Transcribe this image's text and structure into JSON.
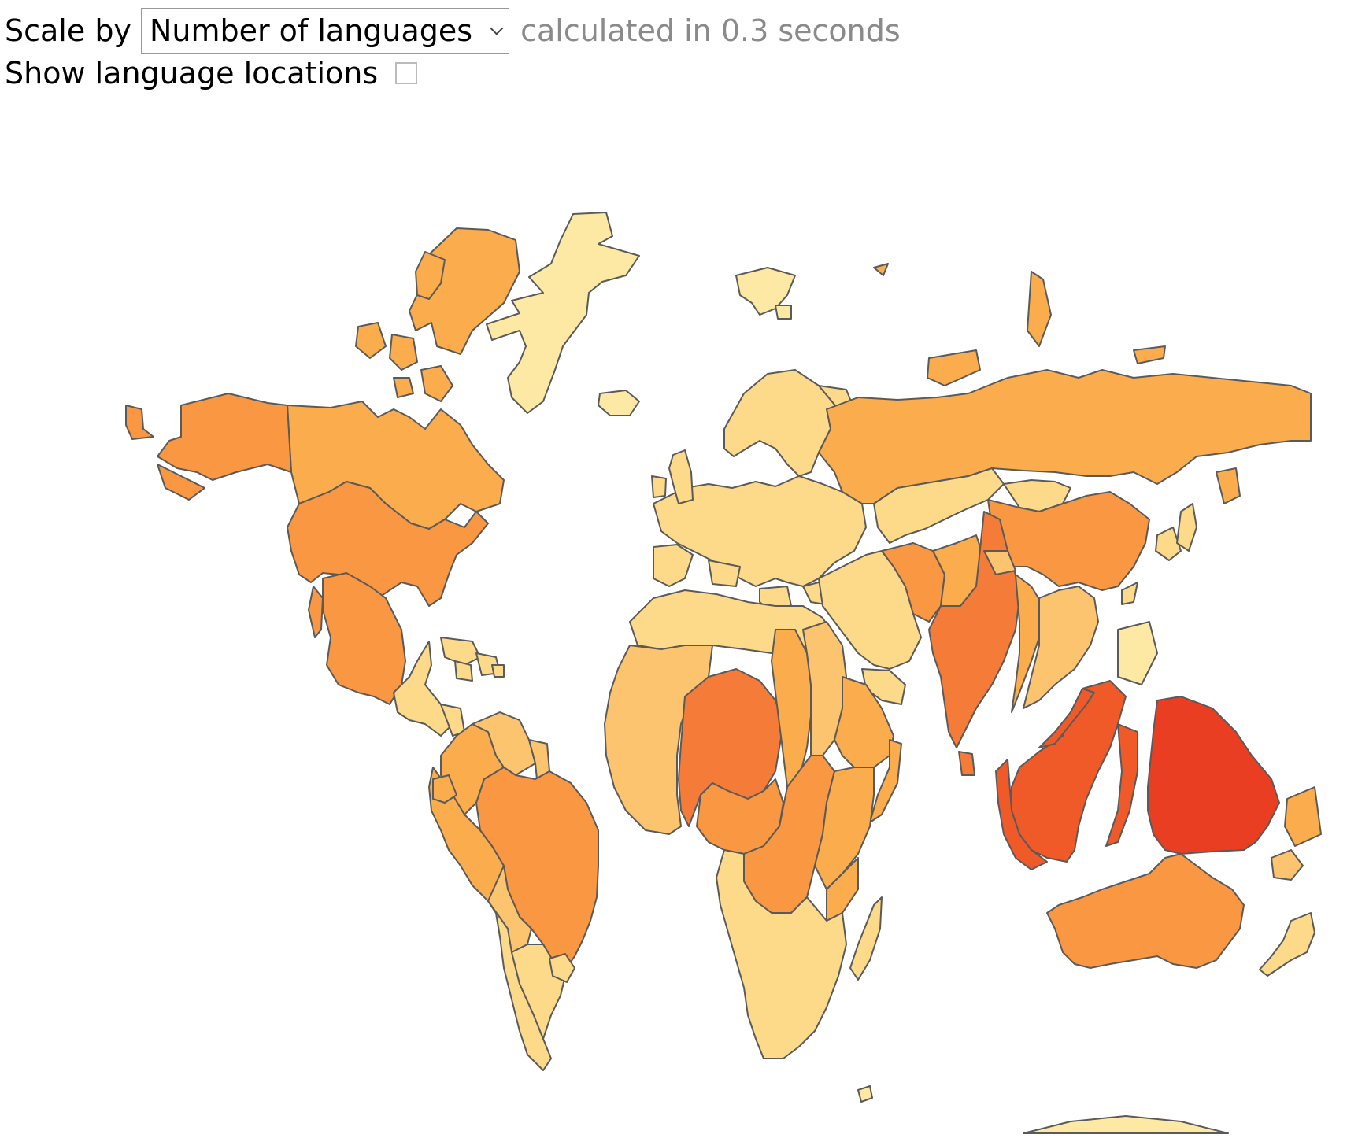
{
  "controls": {
    "scale_label": "Scale by",
    "scale_selected": "Number of languages",
    "timing_text": "calculated in 0.3 seconds",
    "show_locations_label": "Show language locations",
    "show_locations_checked": false
  },
  "palette": {
    "very_light": "#fde9a3",
    "light": "#fdd98a",
    "light_orange": "#fcc46e",
    "medium": "#fbad4e",
    "orange": "#f99743",
    "dark_orange": "#f47b38",
    "red_orange": "#ef5a28",
    "red": "#ea3e22"
  },
  "map": {
    "type": "cartogram",
    "regions": [
      {
        "name": "Greenland",
        "tone": "very_light"
      },
      {
        "name": "Canada",
        "tone": "medium"
      },
      {
        "name": "Alaska",
        "tone": "orange"
      },
      {
        "name": "United States",
        "tone": "orange"
      },
      {
        "name": "Mexico",
        "tone": "orange"
      },
      {
        "name": "Central America",
        "tone": "light"
      },
      {
        "name": "Caribbean",
        "tone": "light"
      },
      {
        "name": "Colombia",
        "tone": "medium"
      },
      {
        "name": "Venezuela",
        "tone": "light_orange"
      },
      {
        "name": "Peru",
        "tone": "medium"
      },
      {
        "name": "Brazil",
        "tone": "orange"
      },
      {
        "name": "Bolivia",
        "tone": "light_orange"
      },
      {
        "name": "Argentina",
        "tone": "light"
      },
      {
        "name": "Chile",
        "tone": "light"
      },
      {
        "name": "Iceland",
        "tone": "very_light"
      },
      {
        "name": "Svalbard",
        "tone": "very_light"
      },
      {
        "name": "Scandinavia",
        "tone": "light"
      },
      {
        "name": "Europe",
        "tone": "light"
      },
      {
        "name": "Russia",
        "tone": "medium"
      },
      {
        "name": "Kazakhstan",
        "tone": "light"
      },
      {
        "name": "China",
        "tone": "orange"
      },
      {
        "name": "Mongolia",
        "tone": "light"
      },
      {
        "name": "Middle East",
        "tone": "light"
      },
      {
        "name": "Iran",
        "tone": "orange"
      },
      {
        "name": "Pakistan",
        "tone": "medium"
      },
      {
        "name": "India",
        "tone": "dark_orange"
      },
      {
        "name": "Myanmar",
        "tone": "medium"
      },
      {
        "name": "Indochina",
        "tone": "light_orange"
      },
      {
        "name": "Japan",
        "tone": "light"
      },
      {
        "name": "Korea",
        "tone": "light"
      },
      {
        "name": "North Africa",
        "tone": "light"
      },
      {
        "name": "West Africa",
        "tone": "light_orange"
      },
      {
        "name": "Nigeria",
        "tone": "dark_orange"
      },
      {
        "name": "Cameroon",
        "tone": "orange"
      },
      {
        "name": "Chad",
        "tone": "medium"
      },
      {
        "name": "Sudan",
        "tone": "light_orange"
      },
      {
        "name": "Ethiopia",
        "tone": "medium"
      },
      {
        "name": "DR Congo",
        "tone": "orange"
      },
      {
        "name": "Tanzania",
        "tone": "medium"
      },
      {
        "name": "Southern Africa",
        "tone": "light"
      },
      {
        "name": "Madagascar",
        "tone": "light"
      },
      {
        "name": "Philippines",
        "tone": "very_light"
      },
      {
        "name": "Indonesia",
        "tone": "red_orange"
      },
      {
        "name": "Papua New Guinea",
        "tone": "red"
      },
      {
        "name": "Solomon Islands",
        "tone": "medium"
      },
      {
        "name": "Vanuatu",
        "tone": "light_orange"
      },
      {
        "name": "Australia",
        "tone": "orange"
      },
      {
        "name": "New Zealand",
        "tone": "light"
      },
      {
        "name": "Antarctica",
        "tone": "very_light"
      }
    ]
  }
}
